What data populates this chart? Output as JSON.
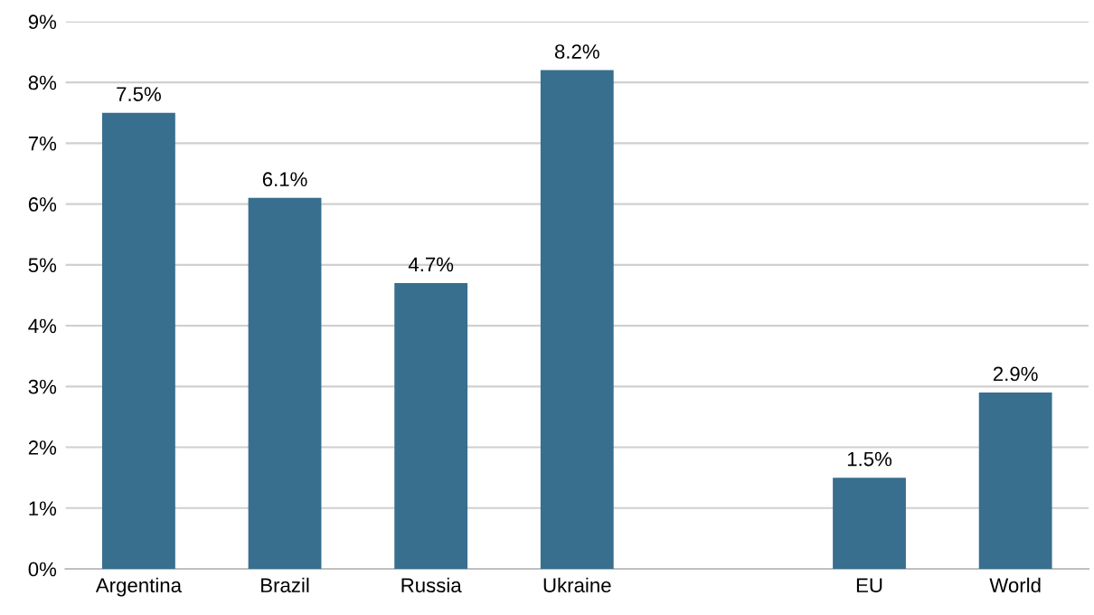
{
  "chart_data": {
    "type": "bar",
    "categories": [
      "Argentina",
      "Brazil",
      "Russia",
      "Ukraine",
      null,
      "EU",
      "World"
    ],
    "values": [
      7.5,
      6.1,
      4.7,
      8.2,
      null,
      1.5,
      2.9
    ],
    "value_labels": [
      "7.5%",
      "6.1%",
      "4.7%",
      "8.2%",
      null,
      "1.5%",
      "2.9%"
    ],
    "color": "#386e8e",
    "ylim": [
      0,
      9
    ],
    "yticks": [
      {
        "value": 0,
        "label": "0%"
      },
      {
        "value": 1,
        "label": "1%"
      },
      {
        "value": 2,
        "label": "2%"
      },
      {
        "value": 3,
        "label": "3%"
      },
      {
        "value": 4,
        "label": "4%"
      },
      {
        "value": 5,
        "label": "5%"
      },
      {
        "value": 6,
        "label": "6%"
      },
      {
        "value": 7,
        "label": "7%"
      },
      {
        "value": 8,
        "label": "8%"
      },
      {
        "value": 9,
        "label": "9%"
      }
    ],
    "grid": "y"
  }
}
